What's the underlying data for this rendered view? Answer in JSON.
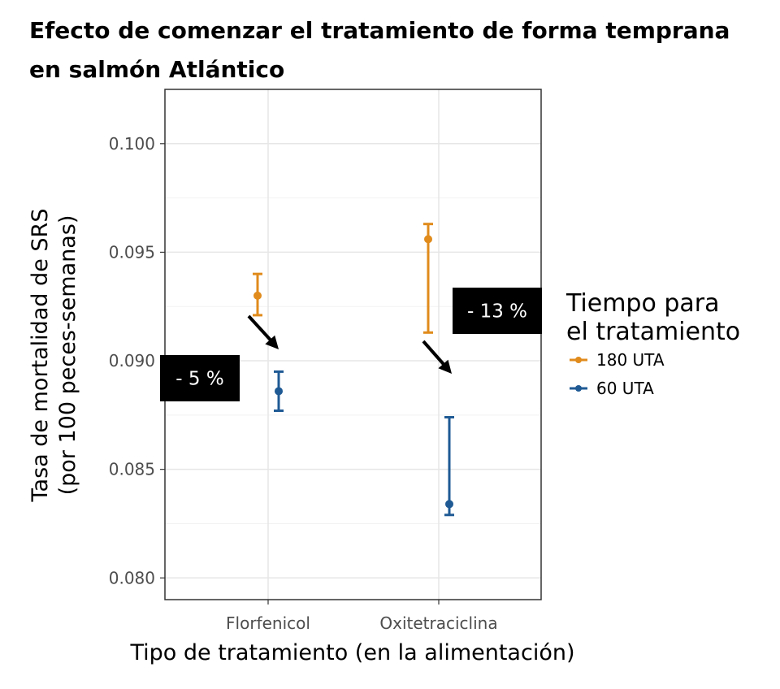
{
  "chart_data": {
    "type": "scatter",
    "title": "Efecto de comenzar el tratamiento de forma temprana en salmón Atlántico",
    "title_lines": [
      "Efecto de comenzar el tratamiento de forma temprana",
      "en salmón Atlántico"
    ],
    "xlabel": "Tipo de tratamiento (en la alimentación)",
    "ylabel_lines": [
      "Tasa de mortalidad de SRS",
      "(por 100 peces-semanas)"
    ],
    "categories": [
      "Florfenicol",
      "Oxitetraciclina"
    ],
    "ylim": [
      0.079,
      0.1025
    ],
    "yticks": [
      "0.080",
      "0.085",
      "0.090",
      "0.095",
      "0.100"
    ],
    "grid": true,
    "legend": {
      "title_lines": [
        "Tiempo para",
        "el tratamiento"
      ],
      "placement": "right"
    },
    "series": [
      {
        "name": "180 UTA",
        "color": "#E08B1C",
        "values": [
          0.093,
          0.0956
        ],
        "lower": [
          0.0921,
          0.0913
        ],
        "upper": [
          0.094,
          0.0963
        ]
      },
      {
        "name": "60 UTA",
        "color": "#1F5A94",
        "values": [
          0.0886,
          0.0834
        ],
        "lower": [
          0.0877,
          0.0829
        ],
        "upper": [
          0.0895,
          0.0874
        ]
      }
    ],
    "annotations": [
      {
        "category": "Florfenicol",
        "text": "- 5 %"
      },
      {
        "category": "Oxitetraciclina",
        "text": "- 13 %"
      }
    ]
  }
}
